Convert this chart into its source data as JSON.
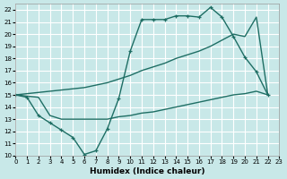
{
  "xlabel": "Humidex (Indice chaleur)",
  "bg_color": "#c8e8e8",
  "grid_color": "#ffffff",
  "line_color": "#1e6e64",
  "xlim": [
    0,
    23
  ],
  "ylim": [
    10,
    22.5
  ],
  "yticks": [
    10,
    11,
    12,
    13,
    14,
    15,
    16,
    17,
    18,
    19,
    20,
    21,
    22
  ],
  "xticks": [
    0,
    1,
    2,
    3,
    4,
    5,
    6,
    7,
    8,
    9,
    10,
    11,
    12,
    13,
    14,
    15,
    16,
    17,
    18,
    19,
    20,
    21,
    22,
    23
  ],
  "line1_x": [
    0,
    1,
    2,
    3,
    4,
    5,
    6,
    7,
    8,
    9,
    10,
    11,
    12,
    13,
    14,
    15,
    16,
    17,
    18,
    19,
    20,
    21,
    22
  ],
  "line1_y": [
    15,
    14.8,
    13.3,
    12.7,
    12.1,
    11.5,
    10.1,
    10.4,
    12.2,
    14.7,
    18.6,
    21.2,
    21.2,
    21.2,
    21.5,
    21.5,
    21.4,
    22.2,
    21.4,
    19.8,
    18.1,
    16.9,
    15.0
  ],
  "line2_x": [
    0,
    1,
    2,
    3,
    4,
    5,
    6,
    7,
    8,
    9,
    10,
    11,
    12,
    13,
    14,
    15,
    16,
    17,
    18,
    19,
    20,
    21,
    22
  ],
  "line2_y": [
    15,
    15.1,
    15.2,
    15.3,
    15.4,
    15.5,
    15.6,
    15.8,
    16.0,
    16.3,
    16.6,
    17.0,
    17.3,
    17.6,
    18.0,
    18.3,
    18.6,
    19.0,
    19.5,
    20.0,
    19.8,
    21.4,
    15.0
  ],
  "line3_x": [
    0,
    1,
    2,
    3,
    4,
    5,
    6,
    7,
    8,
    9,
    10,
    11,
    12,
    13,
    14,
    15,
    16,
    17,
    18,
    19,
    20,
    21,
    22
  ],
  "line3_y": [
    15,
    14.9,
    14.8,
    13.3,
    13.0,
    13.0,
    13.0,
    13.0,
    13.0,
    13.2,
    13.3,
    13.5,
    13.6,
    13.8,
    14.0,
    14.2,
    14.4,
    14.6,
    14.8,
    15.0,
    15.1,
    15.3,
    15.0
  ]
}
